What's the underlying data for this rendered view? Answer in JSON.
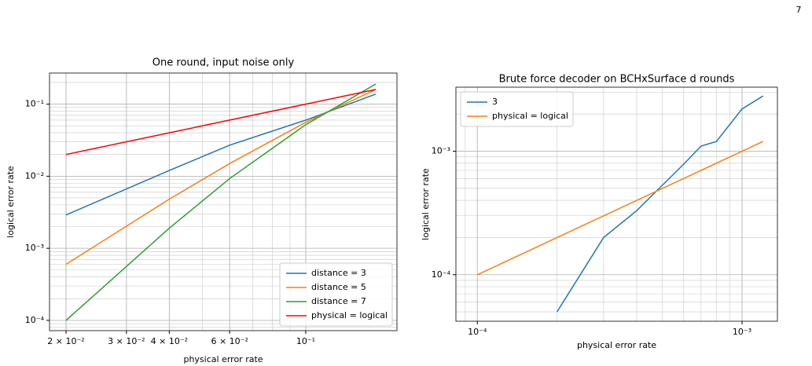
{
  "page_number": "7",
  "chart_data": [
    {
      "type": "line",
      "title": "One round, input noise only",
      "x_label": "physical error rate",
      "y_label": "logical error rate",
      "log_scale": true,
      "grid": true,
      "legend": "lower right",
      "x": [
        0.02,
        0.04,
        0.06,
        0.1,
        0.16
      ],
      "series": [
        {
          "name": "distance = 3",
          "color": "#1f77b4",
          "values": [
            0.0029,
            0.012,
            0.027,
            0.06,
            0.138
          ]
        },
        {
          "name": "distance = 5",
          "color": "#ff7f0e",
          "values": [
            0.0006,
            0.0048,
            0.015,
            0.056,
            0.16
          ]
        },
        {
          "name": "distance = 7",
          "color": "#2ca02c",
          "values": [
            0.0001,
            0.0019,
            0.0093,
            0.052,
            0.19
          ]
        },
        {
          "name": "physical = logical",
          "color": "#ff0000",
          "values": [
            0.02,
            0.04,
            0.06,
            0.1,
            0.16
          ]
        }
      ],
      "xlim": [
        0.0179,
        0.1845
      ],
      "ylim": [
        7.2e-05,
        0.27
      ],
      "xticks": [
        {
          "value": 0.02,
          "label": "2 × 10⁻²"
        },
        {
          "value": 0.03,
          "label": "3 × 10⁻²"
        },
        {
          "value": 0.04,
          "label": "4 × 10⁻²"
        },
        {
          "value": 0.06,
          "label": "6 × 10⁻²"
        },
        {
          "value": 0.1,
          "label": "10⁻¹"
        }
      ],
      "yticks": [
        {
          "value": 0.0001,
          "label": "10⁻⁴"
        },
        {
          "value": 0.001,
          "label": "10⁻³"
        },
        {
          "value": 0.01,
          "label": "10⁻²"
        },
        {
          "value": 0.1,
          "label": "10⁻¹"
        }
      ]
    },
    {
      "type": "line",
      "title": "Brute force decoder on BCHxSurface d rounds",
      "x_label": "physical error rate",
      "y_label": "logical error rate",
      "log_scale": true,
      "grid": true,
      "legend": "upper left",
      "series": [
        {
          "name": "3",
          "color": "#1f77b4",
          "x": [
            0.0002,
            0.0003,
            0.0004,
            0.0005,
            0.0006,
            0.0007,
            0.0008,
            0.001,
            0.0012
          ],
          "values": [
            5e-05,
            0.0002,
            0.00033,
            0.00053,
            0.00078,
            0.0011,
            0.0012,
            0.0022,
            0.0028
          ]
        },
        {
          "name": "physical = logical",
          "color": "#ff7f0e",
          "x": [
            0.0001,
            0.0012
          ],
          "values": [
            0.0001,
            0.0012
          ]
        }
      ],
      "xlim": [
        8.3e-05,
        0.00136
      ],
      "ylim": [
        4.2e-05,
        0.0033
      ],
      "xticks": [
        {
          "value": 0.0001,
          "label": "10⁻⁴"
        },
        {
          "value": 0.001,
          "label": "10⁻³"
        }
      ],
      "yticks": [
        {
          "value": 0.0001,
          "label": "10⁻⁴"
        },
        {
          "value": 0.001,
          "label": "10⁻³"
        }
      ]
    }
  ]
}
